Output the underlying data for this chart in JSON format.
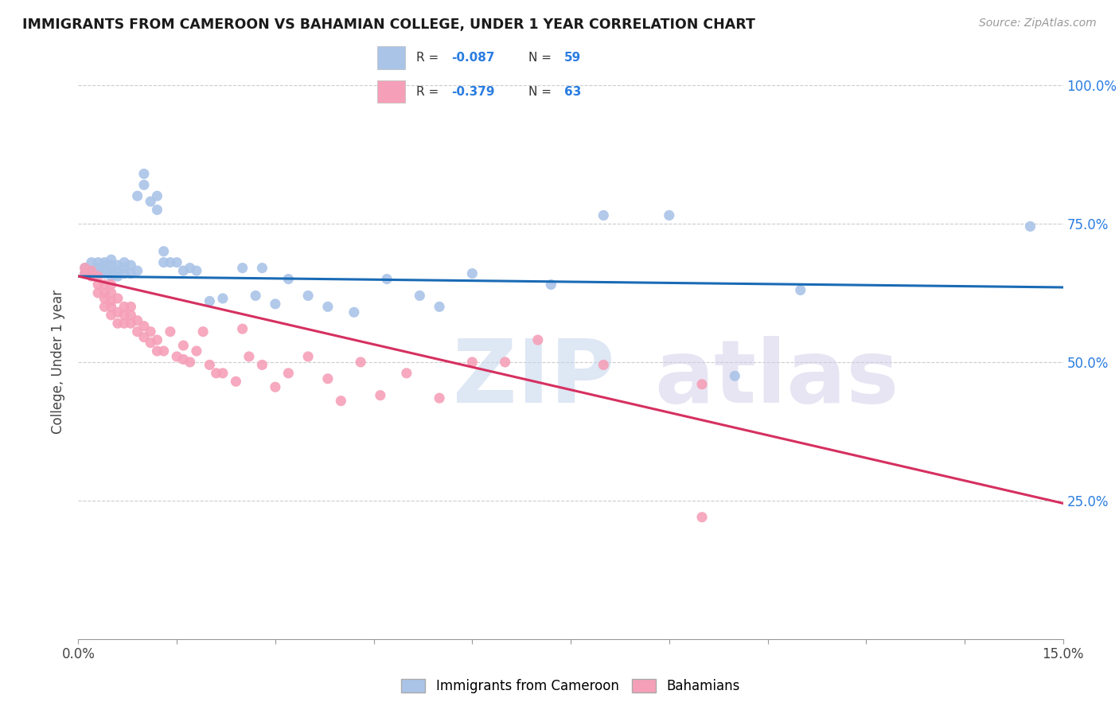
{
  "title": "IMMIGRANTS FROM CAMEROON VS BAHAMIAN COLLEGE, UNDER 1 YEAR CORRELATION CHART",
  "source": "Source: ZipAtlas.com",
  "ylabel": "College, Under 1 year",
  "xmin": 0.0,
  "xmax": 0.15,
  "ymin": 0.0,
  "ymax": 1.0,
  "yticks": [
    0.25,
    0.5,
    0.75,
    1.0
  ],
  "ytick_labels": [
    "25.0%",
    "50.0%",
    "75.0%",
    "100.0%"
  ],
  "xticks": [
    0.0,
    0.015,
    0.03,
    0.045,
    0.06,
    0.075,
    0.09,
    0.105,
    0.12,
    0.135,
    0.15
  ],
  "legend_r1": "-0.087",
  "legend_n1": "59",
  "legend_r2": "-0.379",
  "legend_n2": "63",
  "series1_color": "#aac4e8",
  "series1_line_color": "#1a6bb5",
  "series2_color": "#f5a0b8",
  "series2_line_color": "#d63060",
  "legend_label1": "Immigrants from Cameroon",
  "legend_label2": "Bahamians",
  "line1_x0": 0.0,
  "line1_y0": 0.655,
  "line1_x1": 0.15,
  "line1_y1": 0.635,
  "line2_x0": 0.0,
  "line2_y0": 0.655,
  "line2_x1": 0.15,
  "line2_y1": 0.245,
  "s1x": [
    0.001,
    0.001,
    0.002,
    0.002,
    0.002,
    0.003,
    0.003,
    0.003,
    0.004,
    0.004,
    0.004,
    0.004,
    0.005,
    0.005,
    0.005,
    0.005,
    0.005,
    0.006,
    0.006,
    0.006,
    0.007,
    0.007,
    0.007,
    0.008,
    0.008,
    0.009,
    0.009,
    0.01,
    0.01,
    0.011,
    0.012,
    0.012,
    0.013,
    0.013,
    0.014,
    0.015,
    0.016,
    0.017,
    0.018,
    0.02,
    0.022,
    0.025,
    0.027,
    0.028,
    0.03,
    0.032,
    0.035,
    0.038,
    0.042,
    0.047,
    0.052,
    0.055,
    0.06,
    0.072,
    0.08,
    0.09,
    0.1,
    0.11,
    0.145
  ],
  "s1y": [
    0.66,
    0.67,
    0.66,
    0.665,
    0.68,
    0.66,
    0.67,
    0.68,
    0.66,
    0.665,
    0.675,
    0.68,
    0.655,
    0.66,
    0.665,
    0.675,
    0.685,
    0.655,
    0.665,
    0.675,
    0.66,
    0.67,
    0.68,
    0.66,
    0.675,
    0.665,
    0.8,
    0.82,
    0.84,
    0.79,
    0.8,
    0.775,
    0.68,
    0.7,
    0.68,
    0.68,
    0.665,
    0.67,
    0.665,
    0.61,
    0.615,
    0.67,
    0.62,
    0.67,
    0.605,
    0.65,
    0.62,
    0.6,
    0.59,
    0.65,
    0.62,
    0.6,
    0.66,
    0.64,
    0.765,
    0.765,
    0.475,
    0.63,
    0.745
  ],
  "s2x": [
    0.001,
    0.001,
    0.002,
    0.002,
    0.003,
    0.003,
    0.003,
    0.004,
    0.004,
    0.004,
    0.004,
    0.005,
    0.005,
    0.005,
    0.005,
    0.005,
    0.006,
    0.006,
    0.006,
    0.007,
    0.007,
    0.007,
    0.008,
    0.008,
    0.008,
    0.009,
    0.009,
    0.01,
    0.01,
    0.011,
    0.011,
    0.012,
    0.012,
    0.013,
    0.014,
    0.015,
    0.016,
    0.016,
    0.017,
    0.018,
    0.019,
    0.02,
    0.021,
    0.022,
    0.024,
    0.025,
    0.026,
    0.028,
    0.03,
    0.032,
    0.035,
    0.038,
    0.04,
    0.043,
    0.046,
    0.05,
    0.055,
    0.06,
    0.065,
    0.07,
    0.08,
    0.095,
    0.095
  ],
  "s2y": [
    0.66,
    0.67,
    0.655,
    0.665,
    0.625,
    0.64,
    0.655,
    0.6,
    0.615,
    0.625,
    0.64,
    0.585,
    0.6,
    0.61,
    0.625,
    0.64,
    0.57,
    0.59,
    0.615,
    0.57,
    0.585,
    0.6,
    0.57,
    0.585,
    0.6,
    0.555,
    0.575,
    0.545,
    0.565,
    0.535,
    0.555,
    0.52,
    0.54,
    0.52,
    0.555,
    0.51,
    0.505,
    0.53,
    0.5,
    0.52,
    0.555,
    0.495,
    0.48,
    0.48,
    0.465,
    0.56,
    0.51,
    0.495,
    0.455,
    0.48,
    0.51,
    0.47,
    0.43,
    0.5,
    0.44,
    0.48,
    0.435,
    0.5,
    0.5,
    0.54,
    0.495,
    0.46,
    0.22
  ]
}
